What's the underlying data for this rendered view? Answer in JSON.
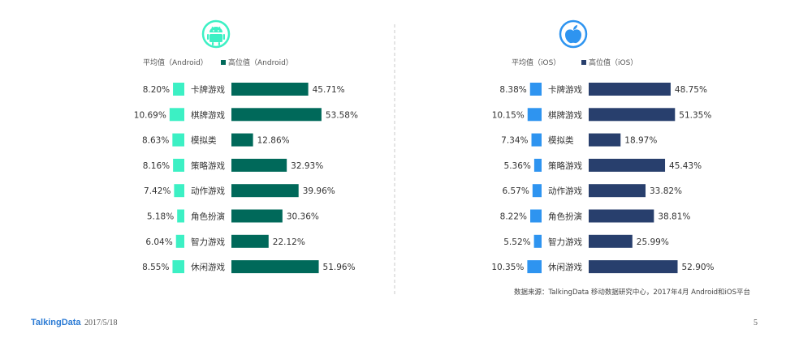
{
  "chart_data": [
    {
      "type": "bar",
      "platform_icon": "android-icon",
      "legend": {
        "average_label": "平均值（Android）",
        "high_label": "高位值（Android）"
      },
      "categories": [
        "卡牌游戏",
        "棋牌游戏",
        "模拟类",
        "策略游戏",
        "动作游戏",
        "角色扮演",
        "智力游戏",
        "休闲游戏"
      ],
      "series": [
        {
          "name": "平均值（Android）",
          "color": "#3cf0c4",
          "values": [
            8.2,
            10.69,
            8.63,
            8.16,
            7.42,
            5.18,
            6.04,
            8.55
          ],
          "labels": [
            "8.20%",
            "10.69%",
            "8.63%",
            "8.16%",
            "7.42%",
            "5.18%",
            "6.04%",
            "8.55%"
          ]
        },
        {
          "name": "高位值（Android）",
          "color": "#00695a",
          "values": [
            45.71,
            53.58,
            12.86,
            32.93,
            39.96,
            30.36,
            22.12,
            51.96
          ],
          "labels": [
            "45.71%",
            "53.58%",
            "12.86%",
            "32.93%",
            "39.96%",
            "30.36%",
            "22.12%",
            "51.96%"
          ]
        }
      ]
    },
    {
      "type": "bar",
      "platform_icon": "apple-icon",
      "legend": {
        "average_label": "平均值（iOS）",
        "high_label": "高位值（iOS）"
      },
      "categories": [
        "卡牌游戏",
        "棋牌游戏",
        "模拟类",
        "策略游戏",
        "动作游戏",
        "角色扮演",
        "智力游戏",
        "休闲游戏"
      ],
      "series": [
        {
          "name": "平均值（iOS）",
          "color": "#2e94f0",
          "values": [
            8.38,
            10.15,
            7.34,
            5.36,
            6.57,
            8.22,
            5.52,
            10.35
          ],
          "labels": [
            "8.38%",
            "10.15%",
            "7.34%",
            "5.36%",
            "6.57%",
            "8.22%",
            "5.52%",
            "10.35%"
          ]
        },
        {
          "name": "高位值（iOS）",
          "color": "#283f6d",
          "values": [
            48.75,
            51.35,
            18.97,
            45.43,
            33.82,
            38.81,
            25.99,
            52.9
          ],
          "labels": [
            "48.75%",
            "51.35%",
            "18.97%",
            "45.43%",
            "33.82%",
            "38.81%",
            "25.99%",
            "52.90%"
          ]
        }
      ]
    }
  ],
  "source_note": "数据来源：TalkingData 移动数据研究中心，2017年4月 Android和iOS平台",
  "footer": {
    "logo_text": "TalkingData",
    "date": "2017/5/18",
    "page_number": "5"
  }
}
